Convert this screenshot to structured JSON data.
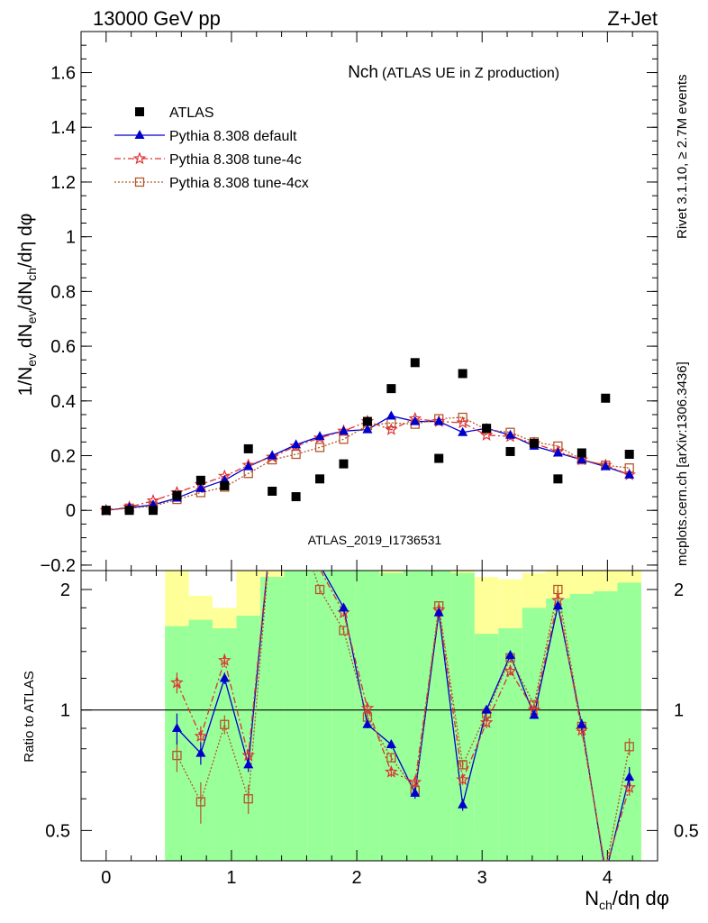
{
  "header": {
    "left": "13000 GeV pp",
    "right": "Z+Jet"
  },
  "side_labels": {
    "rivet": "Rivet 3.1.10, ≥ 2.7M events",
    "mcplots": "mcplots.cern.ch [arXiv:1306.3436]"
  },
  "chart_data": [
    {
      "type": "scatter",
      "panel": "main",
      "title": "Nch",
      "subtitle": "(ATLAS UE in Z production)",
      "xlabel": "N_ch/dη dφ",
      "ylabel": "1/N_ev dN_ev/dN_ch/dη dφ",
      "xlim": [
        -0.2,
        4.4
      ],
      "ylim": [
        -0.22,
        1.75
      ],
      "xticks": [
        "0",
        "1",
        "2",
        "3",
        "4"
      ],
      "yticks": [
        "−0.2",
        "0",
        "0.2",
        "0.4",
        "0.6",
        "0.8",
        "1",
        "1.2",
        "1.4",
        "1.6"
      ],
      "watermark": "ATLAS_2019_I1736531",
      "legend_position": "top-left",
      "x": [
        0.0,
        0.185,
        0.375,
        0.565,
        0.755,
        0.945,
        1.135,
        1.325,
        1.515,
        1.705,
        1.895,
        2.085,
        2.275,
        2.465,
        2.655,
        2.845,
        3.035,
        3.225,
        3.415,
        3.605,
        3.795,
        3.985,
        4.175
      ],
      "series": [
        {
          "name": "ATLAS",
          "color": "#000000",
          "marker": "square",
          "values": [
            0.0,
            0.0,
            0.0,
            0.055,
            0.11,
            0.09,
            0.225,
            0.07,
            0.05,
            0.115,
            0.17,
            0.325,
            0.445,
            0.54,
            0.19,
            0.5,
            0.3,
            0.215,
            0.245,
            0.115,
            0.21,
            0.41,
            0.205
          ]
        },
        {
          "name": "Pythia 8.308 default",
          "color": "#0000cc",
          "marker": "triangle",
          "values": [
            0.0,
            0.01,
            0.02,
            0.045,
            0.08,
            0.11,
            0.16,
            0.2,
            0.24,
            0.27,
            0.29,
            0.295,
            0.345,
            0.325,
            0.325,
            0.285,
            0.3,
            0.275,
            0.235,
            0.21,
            0.185,
            0.16,
            0.13
          ]
        },
        {
          "name": "Pythia 8.308 tune-4c",
          "color": "#dd3333",
          "marker": "star",
          "values": [
            0.0,
            0.012,
            0.035,
            0.065,
            0.095,
            0.125,
            0.165,
            0.195,
            0.235,
            0.265,
            0.29,
            0.325,
            0.295,
            0.335,
            0.325,
            0.32,
            0.275,
            0.27,
            0.245,
            0.215,
            0.185,
            0.165,
            0.13
          ]
        },
        {
          "name": "Pythia 8.308 tune-4cx",
          "color": "#b5562a",
          "marker": "open-square",
          "values": [
            0.0,
            0.008,
            0.015,
            0.04,
            0.065,
            0.085,
            0.135,
            0.185,
            0.205,
            0.23,
            0.26,
            0.31,
            0.32,
            0.315,
            0.335,
            0.34,
            0.295,
            0.285,
            0.25,
            0.235,
            0.185,
            0.165,
            0.155
          ]
        }
      ]
    },
    {
      "type": "line",
      "panel": "ratio",
      "ylabel": "Ratio to ATLAS",
      "xlabel": "N_ch/dη dφ",
      "xlim": [
        -0.2,
        4.4
      ],
      "ylim": [
        0.42,
        2.23
      ],
      "yticks": [
        "0.5",
        "1",
        "2"
      ],
      "yscale": "log",
      "reference_line": 1,
      "bands": {
        "edges": [
          0.47,
          0.66,
          0.85,
          1.04,
          1.23,
          1.42,
          1.61,
          1.8,
          1.99,
          2.18,
          2.37,
          2.56,
          2.75,
          2.94,
          3.13,
          3.32,
          3.51,
          3.7,
          3.89,
          4.08,
          4.27
        ],
        "green_lo": [
          0.3,
          0.4,
          0.3,
          0.4,
          0.3,
          0.3,
          0.3,
          0.3,
          0.3,
          0.3,
          0.3,
          0.3,
          0.3,
          0.3,
          0.3,
          0.3,
          0.3,
          0.3,
          0.3,
          0.3
        ],
        "green_hi": [
          1.62,
          1.68,
          1.6,
          1.72,
          2.15,
          3.0,
          3.0,
          2.8,
          2.5,
          2.2,
          2.4,
          2.5,
          2.2,
          1.55,
          1.6,
          1.8,
          1.9,
          1.95,
          1.98,
          2.08
        ],
        "yellow_lo": [
          0.3,
          0.5,
          0.3,
          0.5,
          0.3,
          0.3,
          0.3,
          0.3,
          0.3,
          0.53,
          0.48,
          0.53,
          0.3,
          0.51,
          0.52,
          0.48,
          0.3,
          0.3,
          0.3,
          0.3
        ],
        "yellow_hi": [
          3.0,
          1.93,
          1.8,
          2.45,
          3.0,
          3.0,
          3.0,
          3.0,
          3.0,
          3.0,
          3.0,
          3.0,
          3.0,
          2.15,
          2.12,
          2.2,
          3.0,
          3.0,
          3.0,
          3.0
        ]
      },
      "x": [
        0.565,
        0.755,
        0.945,
        1.135,
        1.325,
        1.515,
        1.705,
        1.895,
        2.085,
        2.275,
        2.465,
        2.655,
        2.845,
        3.035,
        3.225,
        3.415,
        3.605,
        3.795,
        3.985,
        4.175
      ],
      "series": [
        {
          "name": "Pythia 8.308 default",
          "color": "#0000cc",
          "marker": "triangle",
          "values": [
            0.9,
            0.78,
            1.2,
            0.73,
            3.0,
            3.0,
            2.3,
            1.8,
            0.92,
            0.82,
            0.62,
            1.75,
            0.58,
            1.0,
            1.37,
            0.97,
            1.82,
            0.92,
            0.39,
            0.68
          ],
          "errors": [
            0.08,
            0.05,
            0.04,
            0.03,
            0,
            0,
            0.05,
            0.04,
            0.02,
            0.02,
            0.02,
            0.04,
            0.02,
            0.02,
            0.03,
            0.02,
            0.04,
            0.03,
            0.02,
            0.04
          ]
        },
        {
          "name": "Pythia 8.308 tune-4c",
          "color": "#dd3333",
          "marker": "star",
          "values": [
            1.17,
            0.86,
            1.33,
            0.77,
            3.0,
            3.0,
            2.25,
            1.75,
            1.01,
            0.7,
            0.66,
            1.78,
            0.67,
            0.93,
            1.25,
            1.0,
            1.88,
            0.89,
            0.4,
            0.64
          ],
          "errors": [
            0.07,
            0.05,
            0.05,
            0.03,
            0,
            0,
            0.05,
            0.04,
            0.03,
            0.02,
            0.02,
            0.04,
            0.02,
            0.03,
            0.03,
            0.02,
            0.04,
            0.03,
            0.02,
            0.03
          ]
        },
        {
          "name": "Pythia 8.308 tune-4cx",
          "color": "#b5562a",
          "marker": "open-square",
          "values": [
            0.77,
            0.59,
            0.92,
            0.6,
            3.0,
            3.0,
            2.0,
            1.58,
            0.96,
            0.76,
            0.63,
            1.82,
            0.73,
            0.98,
            1.35,
            1.03,
            2.0,
            0.91,
            0.4,
            0.81
          ],
          "errors": [
            0.07,
            0.07,
            0.05,
            0.05,
            0,
            0,
            0.05,
            0.04,
            0.03,
            0.02,
            0.02,
            0.04,
            0.02,
            0.02,
            0.03,
            0.02,
            0.04,
            0.03,
            0.02,
            0.04
          ]
        }
      ]
    }
  ]
}
